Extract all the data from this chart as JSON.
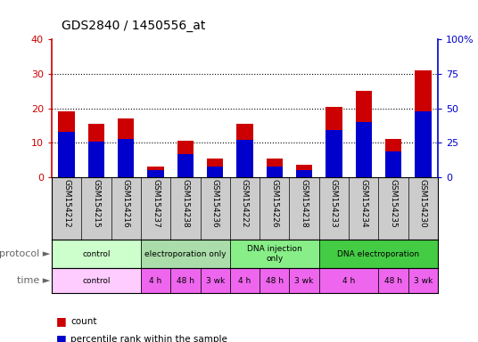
{
  "title": "GDS2840 / 1450556_at",
  "samples": [
    "GSM154212",
    "GSM154215",
    "GSM154216",
    "GSM154237",
    "GSM154238",
    "GSM154236",
    "GSM154222",
    "GSM154226",
    "GSM154218",
    "GSM154233",
    "GSM154234",
    "GSM154235",
    "GSM154230"
  ],
  "counts": [
    19,
    15.5,
    17,
    3,
    10.5,
    5.5,
    15.5,
    5.5,
    3.5,
    20.5,
    25,
    11,
    31
  ],
  "percentile_ranks_pct": [
    33,
    26,
    27.5,
    5,
    16.5,
    7.5,
    27,
    7.5,
    5,
    34,
    40,
    19,
    48
  ],
  "count_color": "#cc0000",
  "percentile_color": "#0000cc",
  "ylim_left": [
    0,
    40
  ],
  "ylim_right": [
    0,
    100
  ],
  "yticks_left": [
    0,
    10,
    20,
    30,
    40
  ],
  "yticks_right": [
    0,
    25,
    50,
    75,
    100
  ],
  "ytick_labels_right": [
    "0",
    "25",
    "50",
    "75",
    "100%"
  ],
  "bar_width": 0.55,
  "background_color": "#ffffff",
  "left_axis_color": "#cc0000",
  "right_axis_color": "#0000cc",
  "sample_bg_color": "#cccccc",
  "proto_colors": [
    "#ccffcc",
    "#aaddaa",
    "#88ee88",
    "#44cc44"
  ],
  "proto_labels": [
    "control",
    "electroporation only",
    "DNA injection\nonly",
    "DNA electroporation"
  ],
  "proto_starts": [
    0,
    3,
    6,
    9
  ],
  "proto_ends": [
    3,
    6,
    9,
    13
  ],
  "time_groups": [
    {
      "label": "control",
      "start": 0,
      "end": 3,
      "light": true
    },
    {
      "label": "4 h",
      "start": 3,
      "end": 4,
      "light": false
    },
    {
      "label": "48 h",
      "start": 4,
      "end": 5,
      "light": false
    },
    {
      "label": "3 wk",
      "start": 5,
      "end": 6,
      "light": false
    },
    {
      "label": "4 h",
      "start": 6,
      "end": 7,
      "light": false
    },
    {
      "label": "48 h",
      "start": 7,
      "end": 8,
      "light": false
    },
    {
      "label": "3 wk",
      "start": 8,
      "end": 9,
      "light": false
    },
    {
      "label": "4 h",
      "start": 9,
      "end": 11,
      "light": false
    },
    {
      "label": "48 h",
      "start": 11,
      "end": 12,
      "light": false
    },
    {
      "label": "3 wk",
      "start": 12,
      "end": 13,
      "light": false
    }
  ],
  "time_color_light": "#ffccff",
  "time_color_dark": "#ee66ee",
  "dotted_lines": [
    10,
    20,
    30
  ]
}
